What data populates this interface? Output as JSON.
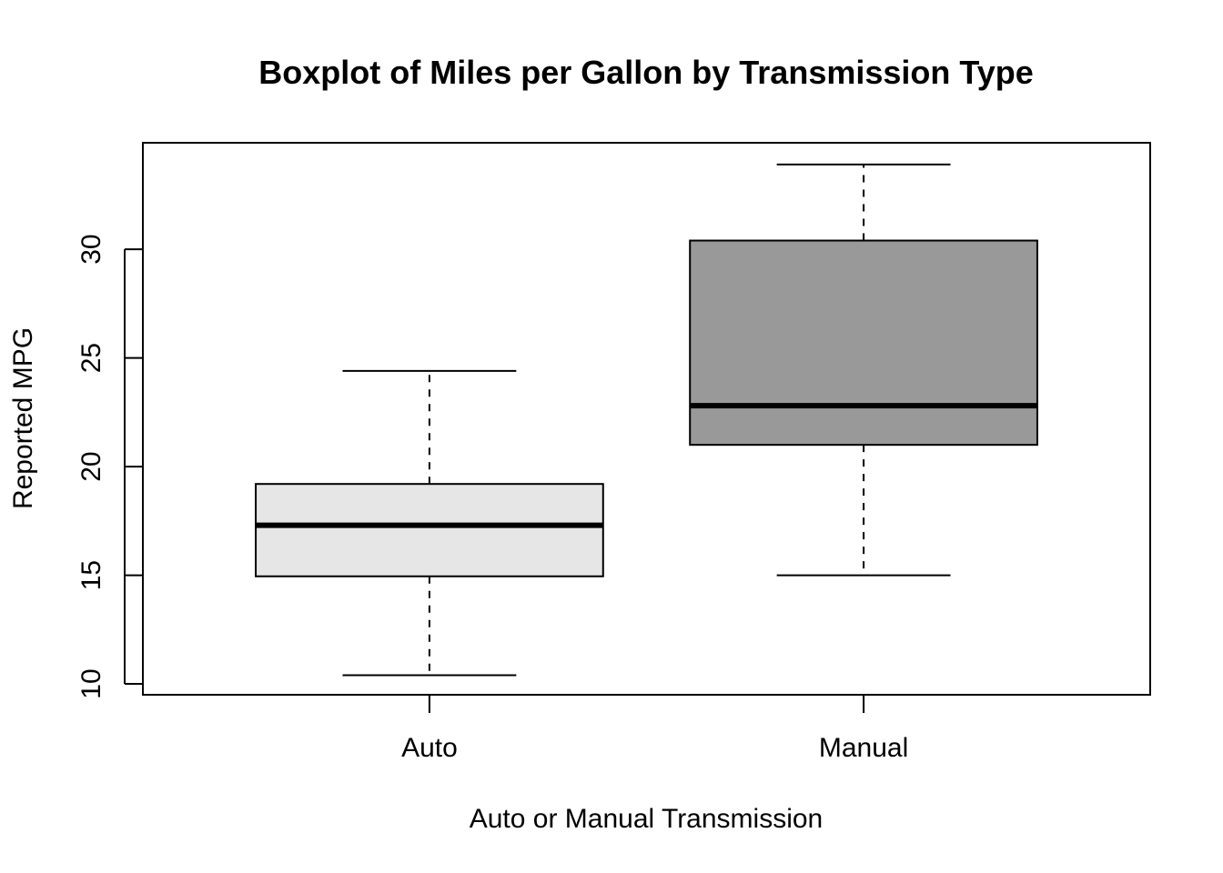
{
  "chart_data": {
    "type": "boxplot",
    "title": "Boxplot of Miles per Gallon by Transmission Type",
    "xlabel": "Auto or Manual Transmission",
    "ylabel": "Reported MPG",
    "categories": [
      "Auto",
      "Manual"
    ],
    "boxes": [
      {
        "category": "Auto",
        "whisker_low": 10.4,
        "q1": 14.95,
        "median": 17.3,
        "q3": 19.2,
        "whisker_high": 24.4,
        "fill": "#e6e6e6"
      },
      {
        "category": "Manual",
        "whisker_low": 15.0,
        "q1": 21.0,
        "median": 22.8,
        "q3": 30.4,
        "whisker_high": 33.9,
        "fill": "#999999"
      }
    ],
    "yticks": [
      10,
      15,
      20,
      25,
      30
    ],
    "ylim": [
      9.5,
      34.9
    ],
    "grid": false,
    "legend": "none"
  }
}
